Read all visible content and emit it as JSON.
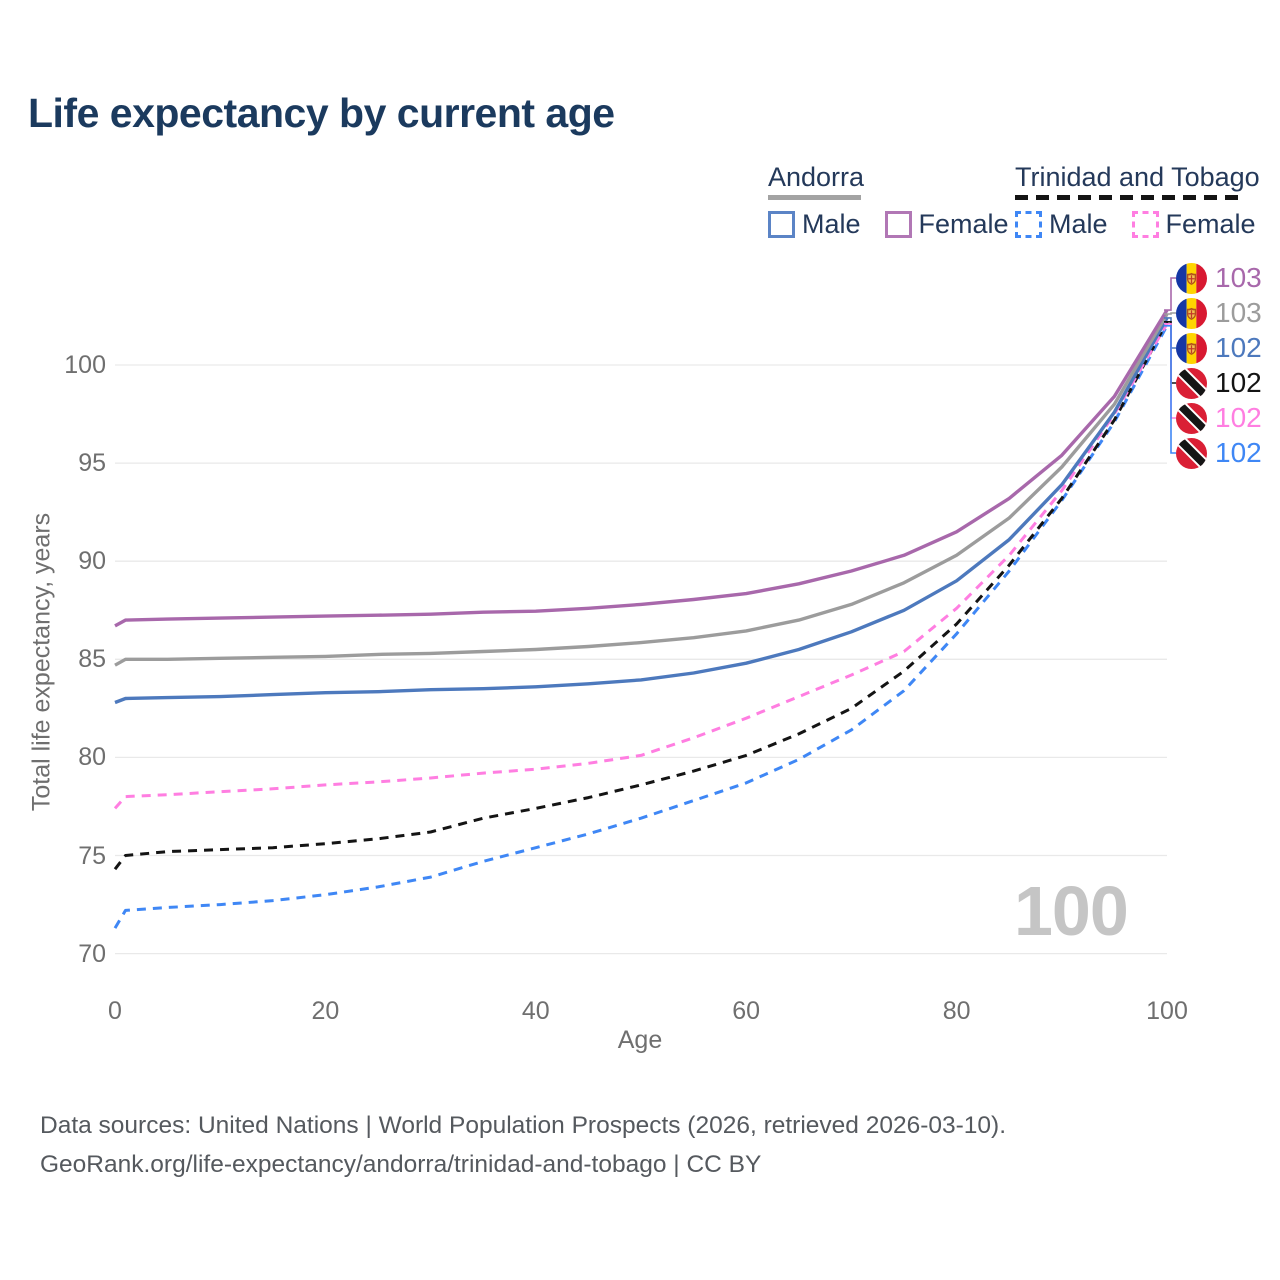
{
  "title": "Life expectancy by current age",
  "legend": {
    "groups": [
      {
        "country": "Andorra",
        "line_style": "solid",
        "underline_color": "#a3a3a3",
        "items": [
          {
            "label": "Male",
            "color": "#5b84c6"
          },
          {
            "label": "Female",
            "color": "#b177b5"
          }
        ]
      },
      {
        "country": "Trinidad and Tobago",
        "line_style": "dashed",
        "underline_color": "#141414",
        "items": [
          {
            "label": "Male",
            "color": "#3f87f5"
          },
          {
            "label": "Female",
            "color": "#ff7ee1"
          }
        ]
      }
    ]
  },
  "y_axis": {
    "title": "Total life expectancy, years",
    "ticks": [
      70,
      75,
      80,
      85,
      90,
      95,
      100
    ]
  },
  "x_axis": {
    "title": "Age",
    "ticks": [
      0,
      20,
      40,
      60,
      80,
      100
    ]
  },
  "watermark": "100",
  "end_labels": [
    {
      "value": "103",
      "flag": "andorra",
      "color": "#a868ab",
      "series": "andorra_female"
    },
    {
      "value": "103",
      "flag": "andorra",
      "color": "#9c9c9c",
      "series": "andorra_total"
    },
    {
      "value": "102",
      "flag": "andorra",
      "color": "#4d79bd",
      "series": "andorra_male"
    },
    {
      "value": "102",
      "flag": "trinidad-and-tobago",
      "color": "#141414",
      "series": "trinidad_total"
    },
    {
      "value": "102",
      "flag": "trinidad-and-tobago",
      "color": "#ff7ee1",
      "series": "trinidad_female"
    },
    {
      "value": "102",
      "flag": "trinidad-and-tobago",
      "color": "#3f87f5",
      "series": "trinidad_male"
    }
  ],
  "footer": {
    "line1": "Data sources: United Nations | World Population Prospects (2026, retrieved 2026-03-10).",
    "line2": "GeoRank.org/life-expectancy/andorra/trinidad-and-tobago | CC BY"
  },
  "chart_data": {
    "type": "line",
    "title": "Life expectancy by current age",
    "xlabel": "Age",
    "ylabel": "Total life expectancy, years",
    "xlim": [
      0,
      100
    ],
    "ylim": [
      70,
      100
    ],
    "grid": true,
    "legend_position": "top-right",
    "x": [
      0,
      1,
      5,
      10,
      15,
      20,
      25,
      30,
      35,
      40,
      45,
      50,
      55,
      60,
      65,
      70,
      75,
      80,
      85,
      90,
      95,
      100
    ],
    "series": [
      {
        "id": "trinidad_male",
        "name": "Trinidad and Tobago Male",
        "country": "Trinidad and Tobago",
        "sex": "male",
        "style": "dashed",
        "color": "#3f87f5",
        "values": [
          71.3,
          72.2,
          72.35,
          72.5,
          72.7,
          73.0,
          73.4,
          73.9,
          74.7,
          75.4,
          76.1,
          76.9,
          77.8,
          78.7,
          79.9,
          81.4,
          83.4,
          86.3,
          89.5,
          93.1,
          97.1,
          102.0
        ]
      },
      {
        "id": "trinidad_total",
        "name": "Trinidad and Tobago Total",
        "country": "Trinidad and Tobago",
        "sex": "both",
        "style": "dashed",
        "color": "#141414",
        "values": [
          74.3,
          75.0,
          75.2,
          75.3,
          75.4,
          75.6,
          75.85,
          76.2,
          76.9,
          77.4,
          77.95,
          78.6,
          79.3,
          80.1,
          81.2,
          82.5,
          84.4,
          86.8,
          89.8,
          93.2,
          97.2,
          102.2
        ]
      },
      {
        "id": "trinidad_female",
        "name": "Trinidad and Tobago Female",
        "country": "Trinidad and Tobago",
        "sex": "female",
        "style": "dashed",
        "color": "#ff7ee1",
        "values": [
          77.4,
          78.0,
          78.1,
          78.25,
          78.4,
          78.6,
          78.75,
          78.95,
          79.2,
          79.4,
          79.7,
          80.1,
          81.0,
          82.0,
          83.1,
          84.2,
          85.4,
          87.6,
          90.3,
          93.6,
          97.5,
          102.1
        ]
      },
      {
        "id": "andorra_male",
        "name": "Andorra Male",
        "country": "Andorra",
        "sex": "male",
        "style": "solid",
        "color": "#4d79bd",
        "values": [
          82.8,
          83.0,
          83.05,
          83.1,
          83.2,
          83.3,
          83.35,
          83.45,
          83.5,
          83.6,
          83.75,
          83.95,
          84.3,
          84.8,
          85.5,
          86.4,
          87.5,
          89.0,
          91.1,
          93.9,
          97.6,
          102.4
        ]
      },
      {
        "id": "andorra_total",
        "name": "Andorra Total",
        "country": "Andorra",
        "sex": "both",
        "style": "solid",
        "color": "#9c9c9c",
        "values": [
          84.7,
          85.0,
          85.0,
          85.05,
          85.1,
          85.15,
          85.25,
          85.3,
          85.4,
          85.5,
          85.65,
          85.85,
          86.1,
          86.45,
          87.0,
          87.8,
          88.9,
          90.3,
          92.2,
          94.8,
          98.0,
          102.6
        ]
      },
      {
        "id": "andorra_female",
        "name": "Andorra Female",
        "country": "Andorra",
        "sex": "female",
        "style": "solid",
        "color": "#a868ab",
        "values": [
          86.7,
          87.0,
          87.05,
          87.1,
          87.15,
          87.2,
          87.25,
          87.3,
          87.4,
          87.45,
          87.6,
          87.8,
          88.05,
          88.35,
          88.85,
          89.5,
          90.3,
          91.5,
          93.2,
          95.4,
          98.4,
          102.8
        ]
      }
    ]
  }
}
